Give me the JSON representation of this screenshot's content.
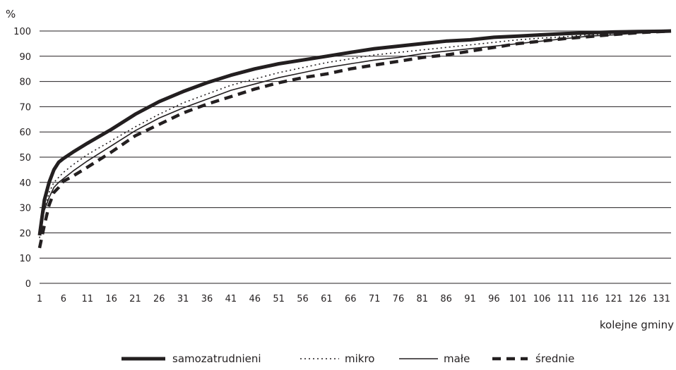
{
  "chart_data": {
    "type": "line",
    "ylabel": "%",
    "xlabel": "kolejne gminy",
    "ylim": [
      0,
      100
    ],
    "yticks": [
      0,
      10,
      20,
      30,
      40,
      50,
      60,
      70,
      80,
      90,
      100
    ],
    "xlim": [
      1,
      133
    ],
    "xticks": [
      1,
      6,
      11,
      16,
      21,
      26,
      31,
      36,
      41,
      46,
      51,
      56,
      61,
      66,
      71,
      76,
      81,
      86,
      91,
      96,
      101,
      106,
      111,
      116,
      121,
      126,
      131
    ],
    "grid": "horizontal",
    "legend_position": "bottom",
    "series": [
      {
        "name": "samozatrudnieni",
        "style": "thick",
        "color": "#231f20",
        "x": [
          1,
          2,
          3,
          4,
          5,
          6,
          8,
          11,
          16,
          21,
          26,
          31,
          36,
          41,
          46,
          51,
          56,
          61,
          66,
          71,
          76,
          81,
          86,
          91,
          96,
          101,
          106,
          111,
          116,
          121,
          126,
          131,
          133
        ],
        "y": [
          19,
          33,
          40,
          45,
          48,
          49.5,
          52,
          55.5,
          61,
          67,
          72,
          76,
          79.5,
          82.5,
          85,
          87,
          88.5,
          90,
          91.5,
          93,
          94,
          95,
          96,
          96.5,
          97.5,
          98,
          98.5,
          99,
          99.3,
          99.6,
          99.8,
          99.9,
          100
        ]
      },
      {
        "name": "mikro",
        "style": "dotted",
        "color": "#231f20",
        "x": [
          1,
          2,
          3,
          4,
          5,
          6,
          8,
          11,
          16,
          21,
          26,
          31,
          36,
          41,
          46,
          51,
          56,
          61,
          66,
          71,
          76,
          81,
          86,
          91,
          96,
          101,
          106,
          111,
          116,
          121,
          126,
          131,
          133
        ],
        "y": [
          18,
          29,
          36,
          40,
          42,
          44,
          47,
          51,
          56.5,
          62,
          67,
          71.5,
          75,
          78.5,
          81,
          83.5,
          85.5,
          87.5,
          89,
          90.5,
          91.5,
          92.5,
          93.5,
          94.5,
          95.5,
          96.5,
          97.2,
          97.8,
          98.5,
          99,
          99.5,
          99.8,
          100
        ]
      },
      {
        "name": "małe",
        "style": "thin",
        "color": "#231f20",
        "x": [
          1,
          2,
          3,
          4,
          5,
          6,
          8,
          11,
          16,
          21,
          26,
          31,
          36,
          41,
          46,
          51,
          56,
          61,
          66,
          71,
          76,
          81,
          86,
          91,
          96,
          101,
          106,
          111,
          116,
          121,
          126,
          131,
          133
        ],
        "y": [
          20,
          29,
          34,
          38,
          40,
          41.5,
          44.5,
          48.5,
          54.5,
          60.5,
          65.5,
          69.5,
          73,
          76.5,
          79,
          81.5,
          83.5,
          85.5,
          87,
          88.5,
          89.5,
          91,
          92,
          93,
          94,
          95,
          96,
          97,
          98,
          98.5,
          99.2,
          99.7,
          100
        ]
      },
      {
        "name": "średnie",
        "style": "dashed",
        "color": "#231f20",
        "x": [
          1,
          2,
          3,
          4,
          5,
          6,
          8,
          11,
          16,
          21,
          26,
          31,
          36,
          41,
          46,
          51,
          56,
          61,
          66,
          71,
          76,
          81,
          86,
          91,
          96,
          101,
          106,
          111,
          116,
          121,
          126,
          131,
          133
        ],
        "y": [
          14,
          23,
          31,
          36,
          38,
          40.5,
          42.5,
          46,
          52,
          58.5,
          63,
          67.5,
          71,
          74,
          77,
          79.5,
          81.5,
          83,
          85,
          86.5,
          88,
          89.5,
          90.5,
          92,
          93.5,
          95,
          96,
          97,
          97.8,
          98.6,
          99.3,
          99.8,
          100
        ]
      }
    ]
  }
}
